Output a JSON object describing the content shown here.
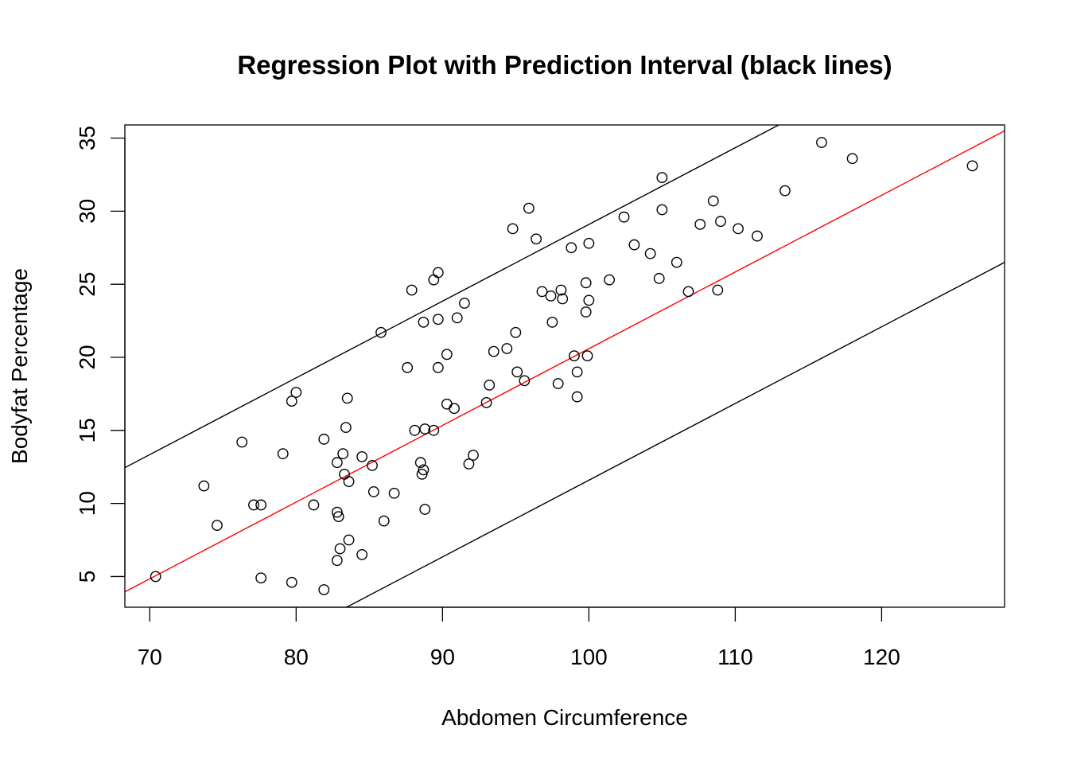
{
  "chart_data": {
    "type": "scatter",
    "title": "Regression Plot with Prediction Interval (black lines)",
    "xlabel": "Abdomen Circumference",
    "ylabel": "Bodyfat Percentage",
    "xlim": [
      68.3,
      128.4
    ],
    "ylim": [
      2.9,
      35.9
    ],
    "x_ticks": [
      70,
      80,
      90,
      100,
      110,
      120
    ],
    "y_ticks": [
      5,
      10,
      15,
      20,
      25,
      30,
      35
    ],
    "grid": false,
    "legend": "none",
    "colors": {
      "points": "#000000",
      "fit": "#ff0000",
      "interval": "#000000"
    },
    "fit_line": {
      "name": "fit",
      "slope": 0.5249,
      "intercept": -31.9
    },
    "prediction_interval": {
      "upper": {
        "slope": 0.5249,
        "intercept": -23.4
      },
      "lower": {
        "slope": 0.5249,
        "intercept": -40.9
      }
    },
    "points": [
      [
        70.4,
        5.0
      ],
      [
        73.7,
        11.2
      ],
      [
        74.6,
        8.5
      ],
      [
        76.3,
        14.2
      ],
      [
        77.1,
        9.9
      ],
      [
        77.6,
        9.9
      ],
      [
        77.6,
        4.9
      ],
      [
        79.1,
        13.4
      ],
      [
        79.7,
        17.0
      ],
      [
        79.7,
        4.6
      ],
      [
        80.0,
        17.6
      ],
      [
        81.2,
        9.9
      ],
      [
        81.9,
        14.4
      ],
      [
        81.9,
        4.1
      ],
      [
        82.8,
        12.8
      ],
      [
        82.8,
        9.4
      ],
      [
        82.9,
        9.1
      ],
      [
        82.8,
        6.1
      ],
      [
        83.0,
        6.9
      ],
      [
        83.2,
        13.4
      ],
      [
        83.3,
        12.0
      ],
      [
        83.4,
        15.2
      ],
      [
        83.5,
        17.2
      ],
      [
        83.6,
        11.5
      ],
      [
        83.6,
        7.5
      ],
      [
        84.5,
        13.2
      ],
      [
        84.5,
        6.5
      ],
      [
        85.2,
        12.6
      ],
      [
        85.3,
        10.8
      ],
      [
        85.8,
        21.7
      ],
      [
        86.0,
        8.8
      ],
      [
        86.7,
        10.7
      ],
      [
        87.6,
        19.3
      ],
      [
        87.9,
        24.6
      ],
      [
        88.1,
        15.0
      ],
      [
        88.5,
        12.8
      ],
      [
        88.6,
        12.0
      ],
      [
        88.7,
        12.3
      ],
      [
        88.7,
        22.4
      ],
      [
        88.8,
        15.1
      ],
      [
        88.8,
        9.6
      ],
      [
        89.4,
        25.3
      ],
      [
        89.4,
        15.0
      ],
      [
        89.7,
        25.8
      ],
      [
        89.7,
        22.6
      ],
      [
        89.7,
        19.3
      ],
      [
        90.3,
        20.2
      ],
      [
        90.3,
        16.8
      ],
      [
        90.8,
        16.5
      ],
      [
        91.0,
        22.7
      ],
      [
        91.5,
        23.7
      ],
      [
        91.8,
        12.7
      ],
      [
        92.1,
        13.3
      ],
      [
        93.0,
        16.9
      ],
      [
        93.2,
        18.1
      ],
      [
        93.5,
        20.4
      ],
      [
        94.4,
        20.6
      ],
      [
        94.8,
        28.8
      ],
      [
        95.0,
        21.7
      ],
      [
        95.1,
        19.0
      ],
      [
        95.6,
        18.4
      ],
      [
        95.9,
        30.2
      ],
      [
        96.4,
        28.1
      ],
      [
        96.8,
        24.5
      ],
      [
        97.4,
        24.2
      ],
      [
        97.5,
        22.4
      ],
      [
        97.9,
        18.2
      ],
      [
        98.1,
        24.6
      ],
      [
        98.2,
        24.0
      ],
      [
        98.8,
        27.5
      ],
      [
        99.0,
        20.1
      ],
      [
        99.2,
        19.0
      ],
      [
        99.2,
        17.3
      ],
      [
        99.8,
        25.1
      ],
      [
        99.8,
        23.1
      ],
      [
        99.9,
        20.1
      ],
      [
        100.0,
        27.8
      ],
      [
        100.0,
        23.9
      ],
      [
        101.4,
        25.3
      ],
      [
        102.4,
        29.6
      ],
      [
        103.1,
        27.7
      ],
      [
        104.2,
        27.1
      ],
      [
        104.8,
        25.4
      ],
      [
        105.0,
        32.3
      ],
      [
        105.0,
        30.1
      ],
      [
        106.0,
        26.5
      ],
      [
        106.8,
        24.5
      ],
      [
        107.6,
        29.1
      ],
      [
        108.5,
        30.7
      ],
      [
        108.8,
        24.6
      ],
      [
        109.0,
        29.3
      ],
      [
        110.2,
        28.8
      ],
      [
        111.5,
        28.3
      ],
      [
        113.4,
        31.4
      ],
      [
        115.9,
        34.7
      ],
      [
        118.0,
        33.6
      ],
      [
        126.2,
        33.1
      ]
    ]
  }
}
